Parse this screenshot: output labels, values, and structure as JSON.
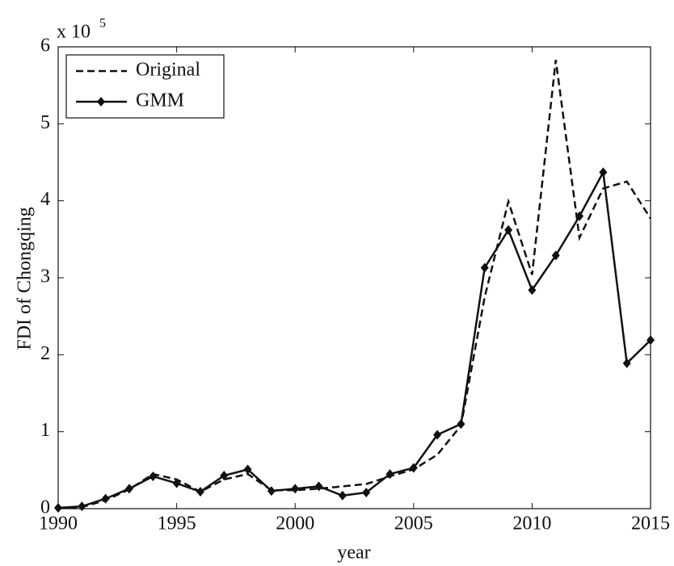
{
  "chart_data": {
    "type": "line",
    "y_label": "FDI of Chongqing",
    "x_label": "year",
    "y_scale_label": "x 10",
    "y_scale_exponent": 5,
    "x": [
      1990,
      1991,
      1992,
      1993,
      1994,
      1995,
      1996,
      1997,
      1998,
      1999,
      2000,
      2001,
      2002,
      2003,
      2004,
      2005,
      2006,
      2007,
      2008,
      2009,
      2010,
      2011,
      2012,
      2013,
      2014,
      2015
    ],
    "series": [
      {
        "name": "Original",
        "color": "#111111",
        "dashed": true,
        "marker": false,
        "values": [
          0.01,
          0.02,
          0.11,
          0.25,
          0.45,
          0.38,
          0.22,
          0.38,
          0.45,
          0.24,
          0.24,
          0.26,
          0.29,
          0.32,
          0.42,
          0.51,
          0.7,
          1.08,
          2.75,
          3.99,
          3.04,
          5.83,
          3.52,
          4.16,
          4.25,
          3.77
        ]
      },
      {
        "name": "GMM",
        "color": "#111111",
        "dashed": false,
        "marker": true,
        "values": [
          0.01,
          0.03,
          0.13,
          0.26,
          0.42,
          0.33,
          0.22,
          0.43,
          0.51,
          0.23,
          0.26,
          0.29,
          0.17,
          0.21,
          0.45,
          0.53,
          0.96,
          1.1,
          3.13,
          3.62,
          2.84,
          3.29,
          3.8,
          4.37,
          1.89,
          2.19
        ]
      }
    ],
    "xlim": [
      1990,
      2015
    ],
    "xticks": [
      1990,
      1995,
      2000,
      2005,
      2010,
      2015
    ],
    "ylim": [
      0,
      6
    ],
    "yticks": [
      0,
      1,
      2,
      3,
      4,
      5,
      6
    ],
    "legend": "upper left"
  }
}
